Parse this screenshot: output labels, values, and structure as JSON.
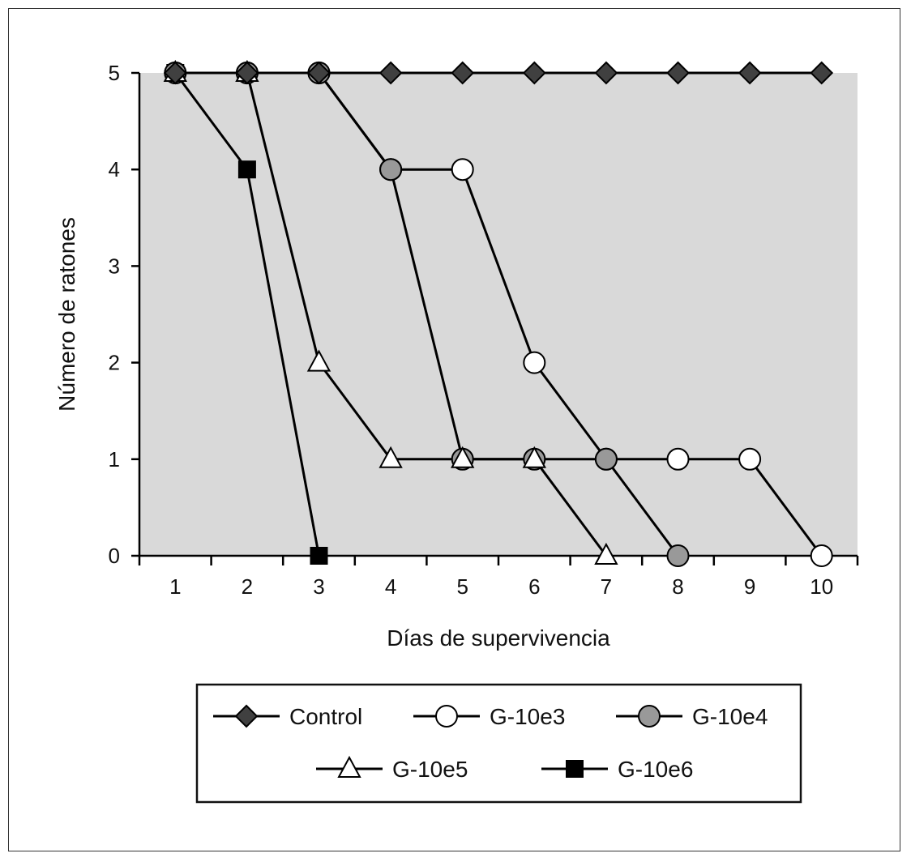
{
  "chart_data": {
    "type": "line",
    "title": "",
    "xlabel": "Días de supervivencia",
    "ylabel": "Número de ratones",
    "x": [
      1,
      2,
      3,
      4,
      5,
      6,
      7,
      8,
      9,
      10
    ],
    "xlim": [
      0.5,
      10.5
    ],
    "ylim": [
      0,
      5
    ],
    "yticks": [
      0,
      1,
      2,
      3,
      4,
      5
    ],
    "grid": false,
    "plot_background": "#d9d9d9",
    "legend_position": "bottom",
    "series": [
      {
        "name": "Control",
        "marker": "diamond",
        "marker_fill": "#404040",
        "points": [
          [
            1,
            5
          ],
          [
            2,
            5
          ],
          [
            3,
            5
          ],
          [
            4,
            5
          ],
          [
            5,
            5
          ],
          [
            6,
            5
          ],
          [
            7,
            5
          ],
          [
            8,
            5
          ],
          [
            9,
            5
          ],
          [
            10,
            5
          ]
        ]
      },
      {
        "name": "G-10e3",
        "marker": "circle",
        "marker_fill": "#ffffff",
        "points": [
          [
            1,
            5
          ],
          [
            2,
            5
          ],
          [
            3,
            5
          ],
          [
            4,
            4
          ],
          [
            5,
            4
          ],
          [
            6,
            2
          ],
          [
            7,
            1
          ],
          [
            8,
            1
          ],
          [
            9,
            1
          ],
          [
            10,
            0
          ]
        ]
      },
      {
        "name": "G-10e4",
        "marker": "circle",
        "marker_fill": "#999999",
        "points": [
          [
            1,
            5
          ],
          [
            2,
            5
          ],
          [
            3,
            5
          ],
          [
            4,
            4
          ],
          [
            5,
            1
          ],
          [
            6,
            1
          ],
          [
            7,
            1
          ],
          [
            8,
            0
          ]
        ]
      },
      {
        "name": "G-10e5",
        "marker": "triangle",
        "marker_fill": "#ffffff",
        "points": [
          [
            1,
            5
          ],
          [
            2,
            5
          ],
          [
            3,
            2
          ],
          [
            4,
            1
          ],
          [
            5,
            1
          ],
          [
            6,
            1
          ],
          [
            7,
            0
          ]
        ]
      },
      {
        "name": "G-10e6",
        "marker": "square",
        "marker_fill": "#000000",
        "points": [
          [
            1,
            5
          ],
          [
            2,
            4
          ],
          [
            3,
            0
          ]
        ]
      }
    ]
  }
}
